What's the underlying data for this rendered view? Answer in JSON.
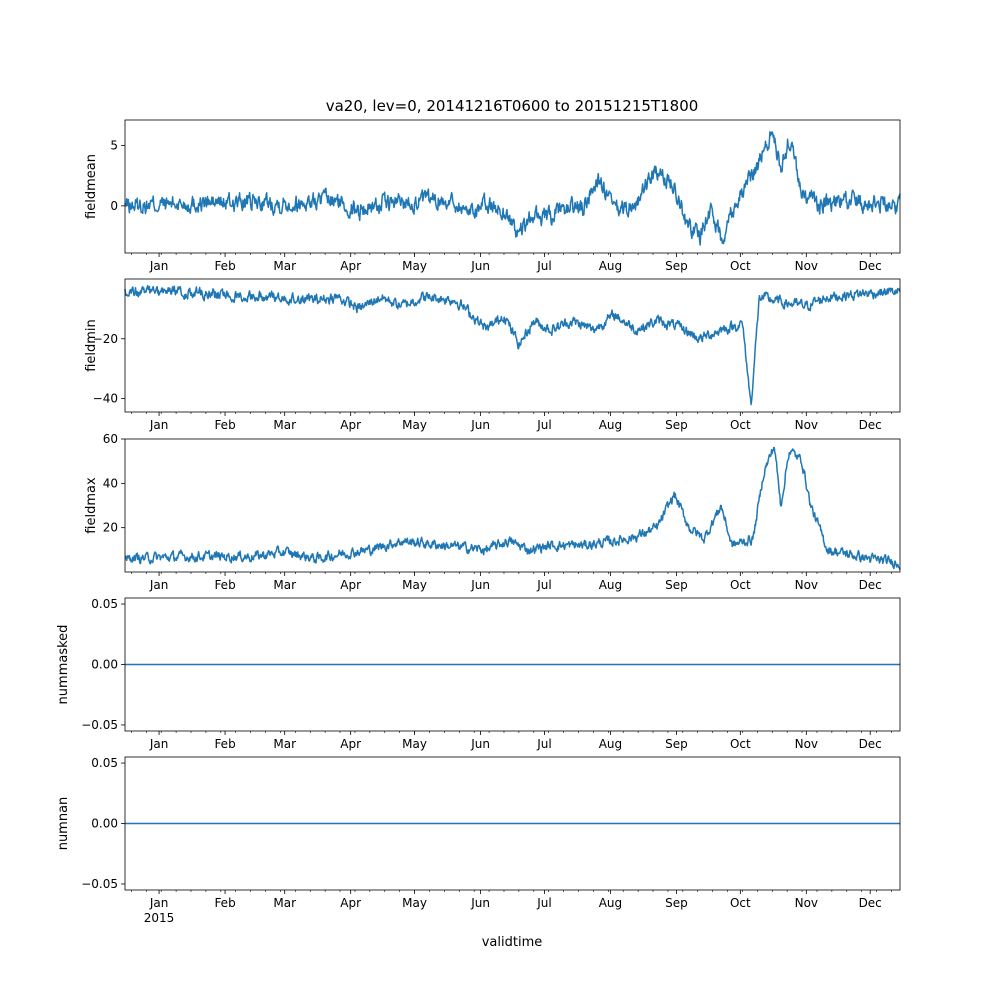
{
  "figure": {
    "title": "va20, lev=0, 20141216T0600 to 20151215T1800",
    "xlabel": "validtime",
    "line_color": "#1f77b4"
  },
  "chart_data": [
    {
      "type": "line",
      "ylabel": "fieldmean",
      "xlim": [
        0,
        364
      ],
      "ylim": [
        -3.9,
        7.1
      ],
      "yticks": [
        0,
        5
      ],
      "ytick_labels": [
        "0",
        "5"
      ],
      "x_unit": "days since 2014-12-16",
      "month_labels": [
        "Jan",
        "Feb",
        "Mar",
        "Apr",
        "May",
        "Jun",
        "Jul",
        "Aug",
        "Sep",
        "Oct",
        "Nov",
        "Dec"
      ],
      "year_label": "",
      "noise": 0.6,
      "knots": [
        [
          0,
          0
        ],
        [
          30,
          0.2
        ],
        [
          60,
          0.3
        ],
        [
          80,
          0.2
        ],
        [
          95,
          0.5
        ],
        [
          100,
          0.3
        ],
        [
          110,
          -0.4
        ],
        [
          120,
          0.2
        ],
        [
          150,
          0.5
        ],
        [
          155,
          0.3
        ],
        [
          160,
          -0.4
        ],
        [
          170,
          0.1
        ],
        [
          178,
          -0.5
        ],
        [
          185,
          -2.3
        ],
        [
          192,
          -0.8
        ],
        [
          200,
          -1
        ],
        [
          210,
          0
        ],
        [
          215,
          -0.3
        ],
        [
          222,
          2.3
        ],
        [
          230,
          -0.4
        ],
        [
          240,
          0.1
        ],
        [
          248,
          2.7
        ],
        [
          258,
          1.8
        ],
        [
          264,
          -1.5
        ],
        [
          270,
          -2.5
        ],
        [
          275,
          -0.3
        ],
        [
          280,
          -2.7
        ],
        [
          285,
          -0.3
        ],
        [
          293,
          2
        ],
        [
          300,
          4.5
        ],
        [
          304,
          6.3
        ],
        [
          308,
          3
        ],
        [
          312,
          5.5
        ],
        [
          318,
          1
        ],
        [
          325,
          0.2
        ],
        [
          340,
          0.4
        ],
        [
          364,
          0.2
        ]
      ]
    },
    {
      "type": "line",
      "ylabel": "fieldmin",
      "xlim": [
        0,
        364
      ],
      "ylim": [
        -44.5,
        0
      ],
      "yticks": [
        -40,
        -20
      ],
      "ytick_labels": [
        "−40",
        "−20"
      ],
      "x_unit": "days since 2014-12-16",
      "month_labels": [
        "Jan",
        "Feb",
        "Mar",
        "Apr",
        "May",
        "Jun",
        "Jul",
        "Aug",
        "Sep",
        "Oct",
        "Nov",
        "Dec"
      ],
      "year_label": "",
      "noise": 1.4,
      "knots": [
        [
          0,
          -4
        ],
        [
          40,
          -5
        ],
        [
          70,
          -6
        ],
        [
          90,
          -7
        ],
        [
          100,
          -6
        ],
        [
          110,
          -10
        ],
        [
          120,
          -6
        ],
        [
          130,
          -9
        ],
        [
          140,
          -6
        ],
        [
          155,
          -7
        ],
        [
          160,
          -10
        ],
        [
          170,
          -17
        ],
        [
          178,
          -12
        ],
        [
          185,
          -22
        ],
        [
          192,
          -14
        ],
        [
          200,
          -17
        ],
        [
          210,
          -14
        ],
        [
          220,
          -17
        ],
        [
          230,
          -12
        ],
        [
          240,
          -17
        ],
        [
          250,
          -14
        ],
        [
          260,
          -16
        ],
        [
          270,
          -20
        ],
        [
          280,
          -17
        ],
        [
          290,
          -15
        ],
        [
          294,
          -42
        ],
        [
          298,
          -6
        ],
        [
          310,
          -8
        ],
        [
          320,
          -9
        ],
        [
          330,
          -6
        ],
        [
          345,
          -5
        ],
        [
          364,
          -4
        ]
      ]
    },
    {
      "type": "line",
      "ylabel": "fieldmax",
      "xlim": [
        0,
        364
      ],
      "ylim": [
        0,
        60
      ],
      "yticks": [
        20,
        40,
        60
      ],
      "ytick_labels": [
        "20",
        "40",
        "60"
      ],
      "x_unit": "days since 2014-12-16",
      "month_labels": [
        "Jan",
        "Feb",
        "Mar",
        "Apr",
        "May",
        "Jun",
        "Jul",
        "Aug",
        "Sep",
        "Oct",
        "Nov",
        "Dec"
      ],
      "year_label": "",
      "noise": 1.8,
      "knots": [
        [
          0,
          6
        ],
        [
          30,
          7
        ],
        [
          60,
          7
        ],
        [
          75,
          9
        ],
        [
          90,
          6
        ],
        [
          100,
          8
        ],
        [
          115,
          10
        ],
        [
          130,
          14
        ],
        [
          150,
          12
        ],
        [
          170,
          10
        ],
        [
          180,
          14
        ],
        [
          190,
          10
        ],
        [
          200,
          12
        ],
        [
          215,
          12
        ],
        [
          230,
          14
        ],
        [
          240,
          16
        ],
        [
          250,
          20
        ],
        [
          258,
          35
        ],
        [
          265,
          20
        ],
        [
          272,
          15
        ],
        [
          280,
          30
        ],
        [
          285,
          12
        ],
        [
          295,
          15
        ],
        [
          300,
          45
        ],
        [
          305,
          57
        ],
        [
          308,
          30
        ],
        [
          312,
          55
        ],
        [
          318,
          50
        ],
        [
          322,
          30
        ],
        [
          330,
          10
        ],
        [
          340,
          8
        ],
        [
          350,
          6
        ],
        [
          364,
          4
        ]
      ]
    },
    {
      "type": "line",
      "ylabel": "nummasked",
      "xlim": [
        0,
        364
      ],
      "ylim": [
        -0.055,
        0.055
      ],
      "yticks": [
        -0.05,
        0,
        0.05
      ],
      "ytick_labels": [
        "−0.05",
        "0.00",
        "0.05"
      ],
      "x_unit": "days since 2014-12-16",
      "month_labels": [
        "Jan",
        "Feb",
        "Mar",
        "Apr",
        "May",
        "Jun",
        "Jul",
        "Aug",
        "Sep",
        "Oct",
        "Nov",
        "Dec"
      ],
      "year_label": "",
      "noise": 0,
      "knots": [
        [
          0,
          0
        ],
        [
          364,
          0
        ]
      ]
    },
    {
      "type": "line",
      "ylabel": "numnan",
      "xlim": [
        0,
        364
      ],
      "ylim": [
        -0.055,
        0.055
      ],
      "yticks": [
        -0.05,
        0,
        0.05
      ],
      "ytick_labels": [
        "−0.05",
        "0.00",
        "0.05"
      ],
      "x_unit": "days since 2014-12-16",
      "month_labels": [
        "Jan",
        "Feb",
        "Mar",
        "Apr",
        "May",
        "Jun",
        "Jul",
        "Aug",
        "Sep",
        "Oct",
        "Nov",
        "Dec"
      ],
      "year_label": "2015",
      "noise": 0,
      "knots": [
        [
          0,
          0
        ],
        [
          364,
          0
        ]
      ]
    }
  ]
}
